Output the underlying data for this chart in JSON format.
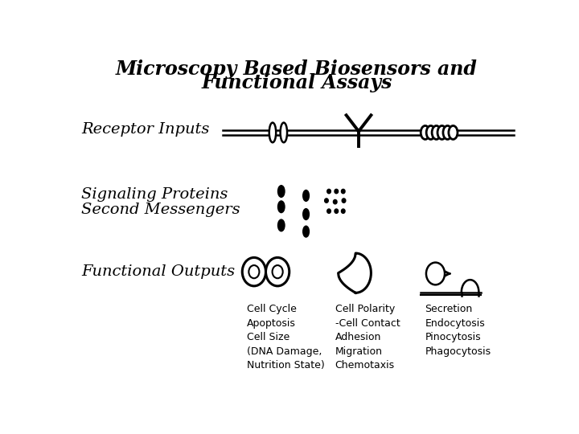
{
  "title_line1": "Microscopy Based Biosensors and",
  "title_line2": "Functional Assays",
  "label_receptor": "Receptor Inputs",
  "label_signaling1": "Signaling Proteins",
  "label_signaling2": "Second Messengers",
  "label_functional": "Functional Outputs",
  "caption1_lines": [
    "Cell Cycle",
    "Apoptosis",
    "Cell Size",
    "(DNA Damage,",
    "Nutrition State)"
  ],
  "caption2_lines": [
    "Cell Polarity",
    "-Cell Contact",
    "Adhesion",
    "Migration",
    "Chemotaxis"
  ],
  "caption3_lines": [
    "Secretion",
    "Endocytosis",
    "Pinocytosis",
    "Phagocytosis"
  ],
  "bg_color": "#ffffff",
  "fg_color": "#000000",
  "title_fontsize": 17,
  "label_fontsize": 14,
  "caption_fontsize": 9
}
